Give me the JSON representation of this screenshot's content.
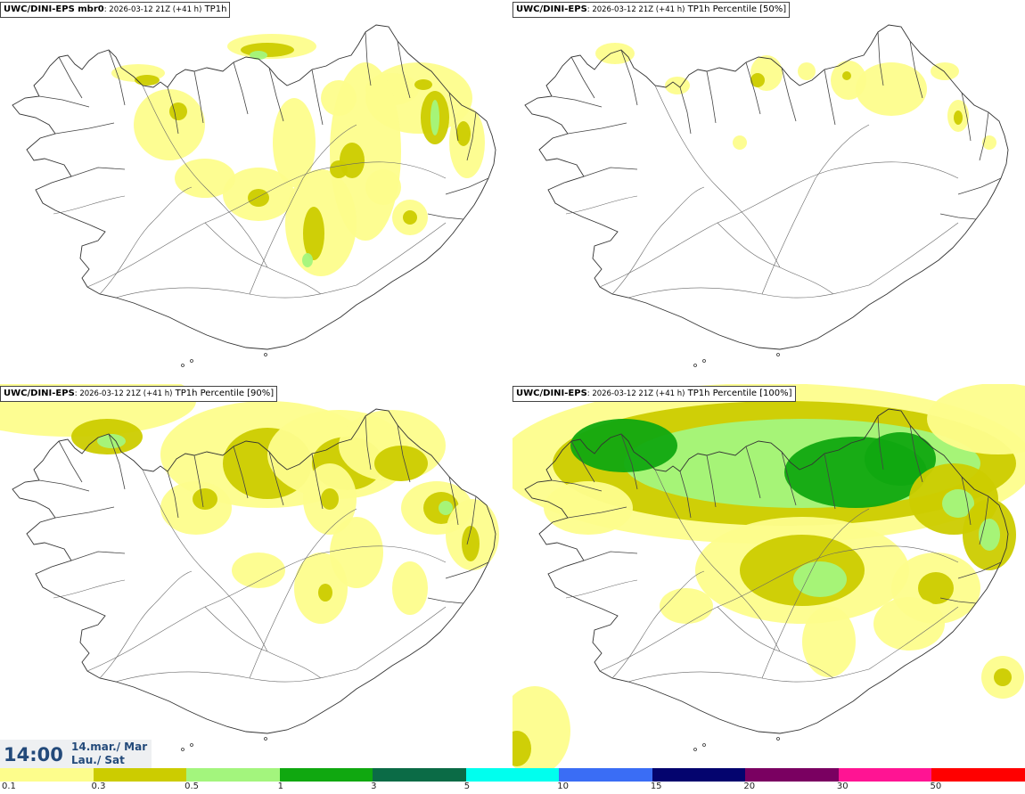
{
  "panels": [
    {
      "model": "UWC/DINI-EPS mbr0",
      "init": ": 2026-03-12 21Z (+41 h)",
      "var": " TP1h",
      "intensity": 1
    },
    {
      "model": "UWC/DINI-EPS",
      "init": ": 2026-03-12 21Z (+41 h)",
      "var": " TP1h Percentile [50%]",
      "intensity": 0
    },
    {
      "model": "UWC/DINI-EPS",
      "init": ": 2026-03-12 21Z (+41 h)",
      "var": " TP1h Percentile [90%]",
      "intensity": 2
    },
    {
      "model": "UWC/DINI-EPS",
      "init": ": 2026-03-12 21Z (+41 h)",
      "var": " TP1h Percentile [100%]",
      "intensity": 3
    }
  ],
  "time": {
    "clock": "14:00",
    "date_line1": "14.mar./ Mar",
    "date_line2": "Lau./ Sat"
  },
  "colorbar": {
    "colors": [
      "#fdfd8c",
      "#cccc00",
      "#a3f57d",
      "#10a810",
      "#0b6b46",
      "#00ffee",
      "#3a6df5",
      "#04046e",
      "#7a0061",
      "#ff1493",
      "#ff0000"
    ],
    "ticks": [
      "0.1",
      "0.3",
      "0.5",
      "1",
      "3",
      "5",
      "10",
      "15",
      "20",
      "30",
      "50"
    ]
  }
}
